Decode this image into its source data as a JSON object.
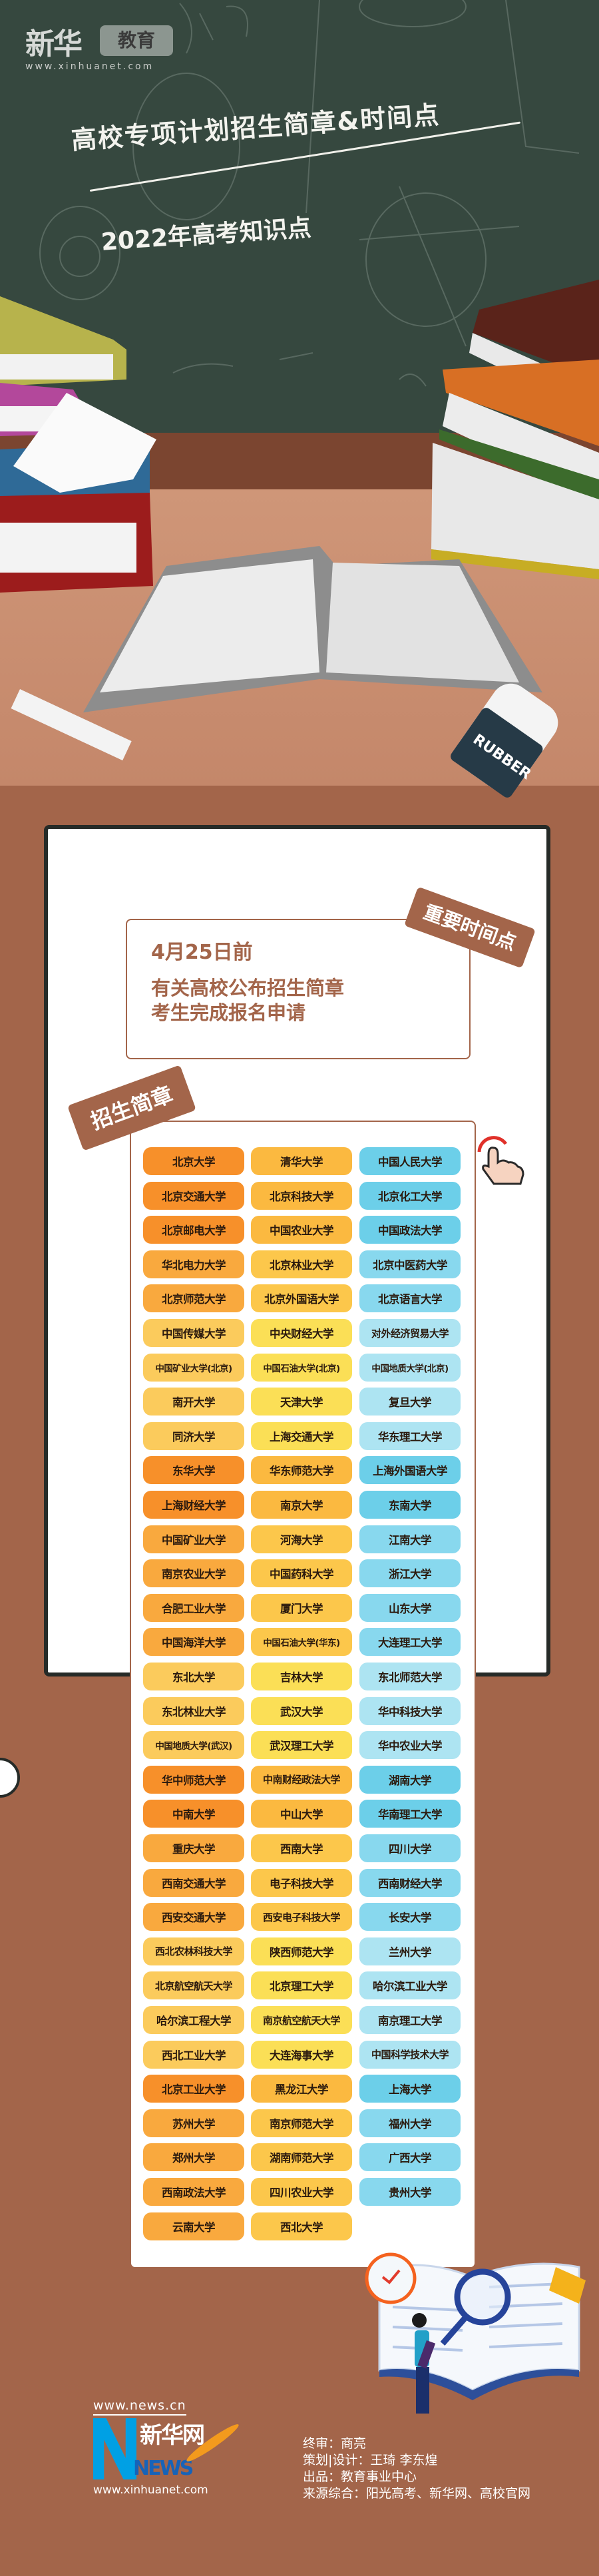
{
  "header": {
    "logo_brand": "新华",
    "logo_section": "教育",
    "logo_url": "www.xinhuanet.com",
    "title": "高校专项计划招生简章&时间点",
    "subtitle": "2022年高考知识点",
    "eraser_text": "RUBBER"
  },
  "timeline": {
    "tag": "重要时间点",
    "date": "4月25日前",
    "lines": [
      "有关高校公布招生简章",
      "考生完成报名申请"
    ]
  },
  "brochure": {
    "tag": "招生简章",
    "colors": {
      "col1": [
        "#f7902a",
        "#f9a93e",
        "#fbcb5c"
      ],
      "col2": [
        "#fbb940",
        "#fcc74b",
        "#fbdf56"
      ],
      "col3": [
        "#6ccfe9",
        "#88d8ee",
        "#ade4f2"
      ]
    },
    "rows": [
      {
        "tone": 1,
        "names": [
          "北京大学",
          "清华大学",
          "中国人民大学"
        ]
      },
      {
        "tone": 1,
        "names": [
          "北京交通大学",
          "北京科技大学",
          "北京化工大学"
        ]
      },
      {
        "tone": 1,
        "names": [
          "北京邮电大学",
          "中国农业大学",
          "中国政法大学"
        ]
      },
      {
        "tone": 2,
        "names": [
          "华北电力大学",
          "北京林业大学",
          "北京中医药大学"
        ]
      },
      {
        "tone": 2,
        "names": [
          "北京师范大学",
          "北京外国语大学",
          "北京语言大学"
        ]
      },
      {
        "tone": 3,
        "names": [
          "中国传媒大学",
          "中央财经大学",
          "对外经济贸易大学"
        ]
      },
      {
        "tone": 3,
        "names": [
          "中国矿业大学(北京)",
          "中国石油大学(北京)",
          "中国地质大学(北京)"
        ]
      },
      {
        "tone": 3,
        "names": [
          "南开大学",
          "天津大学",
          "复旦大学"
        ]
      },
      {
        "tone": 3,
        "names": [
          "同济大学",
          "上海交通大学",
          "华东理工大学"
        ]
      },
      {
        "tone": 1,
        "names": [
          "东华大学",
          "华东师范大学",
          "上海外国语大学"
        ]
      },
      {
        "tone": 1,
        "names": [
          "上海财经大学",
          "南京大学",
          "东南大学"
        ]
      },
      {
        "tone": 2,
        "names": [
          "中国矿业大学",
          "河海大学",
          "江南大学"
        ]
      },
      {
        "tone": 2,
        "names": [
          "南京农业大学",
          "中国药科大学",
          "浙江大学"
        ]
      },
      {
        "tone": 2,
        "names": [
          "合肥工业大学",
          "厦门大学",
          "山东大学"
        ]
      },
      {
        "tone": 2,
        "names": [
          "中国海洋大学",
          "中国石油大学(华东)",
          "大连理工大学"
        ]
      },
      {
        "tone": 3,
        "names": [
          "东北大学",
          "吉林大学",
          "东北师范大学"
        ]
      },
      {
        "tone": 3,
        "names": [
          "东北林业大学",
          "武汉大学",
          "华中科技大学"
        ]
      },
      {
        "tone": 3,
        "names": [
          "中国地质大学(武汉)",
          "武汉理工大学",
          "华中农业大学"
        ]
      },
      {
        "tone": 1,
        "names": [
          "华中师范大学",
          "中南财经政法大学",
          "湖南大学"
        ]
      },
      {
        "tone": 1,
        "names": [
          "中南大学",
          "中山大学",
          "华南理工大学"
        ]
      },
      {
        "tone": 2,
        "names": [
          "重庆大学",
          "西南大学",
          "四川大学"
        ]
      },
      {
        "tone": 2,
        "names": [
          "西南交通大学",
          "电子科技大学",
          "西南财经大学"
        ]
      },
      {
        "tone": 2,
        "names": [
          "西安交通大学",
          "西安电子科技大学",
          "长安大学"
        ]
      },
      {
        "tone": 3,
        "names": [
          "西北农林科技大学",
          "陕西师范大学",
          "兰州大学"
        ]
      },
      {
        "tone": 3,
        "names": [
          "北京航空航天大学",
          "北京理工大学",
          "哈尔滨工业大学"
        ]
      },
      {
        "tone": 3,
        "names": [
          "哈尔滨工程大学",
          "南京航空航天大学",
          "南京理工大学"
        ]
      },
      {
        "tone": 3,
        "names": [
          "西北工业大学",
          "大连海事大学",
          "中国科学技术大学"
        ]
      },
      {
        "tone": 1,
        "names": [
          "北京工业大学",
          "黑龙江大学",
          "上海大学"
        ]
      },
      {
        "tone": 2,
        "names": [
          "苏州大学",
          "南京师范大学",
          "福州大学"
        ]
      },
      {
        "tone": 2,
        "names": [
          "郑州大学",
          "湖南师范大学",
          "广西大学"
        ]
      },
      {
        "tone": 2,
        "names": [
          "西南政法大学",
          "四川农业大学",
          "贵州大学"
        ]
      },
      {
        "tone": 2,
        "names": [
          "云南大学",
          "西北大学"
        ]
      }
    ]
  },
  "footer": {
    "logo_top_url": "www.news.cn",
    "logo_cn": "新华网",
    "logo_en": "NEWS",
    "logo_bottom_url": "www.xinhuanet.com",
    "credits": [
      "终审：商亮",
      "策划|设计：王琦 李东煌",
      "出品：教育事业中心",
      "来源综合：阳光高考、新华网、高校官网"
    ]
  }
}
